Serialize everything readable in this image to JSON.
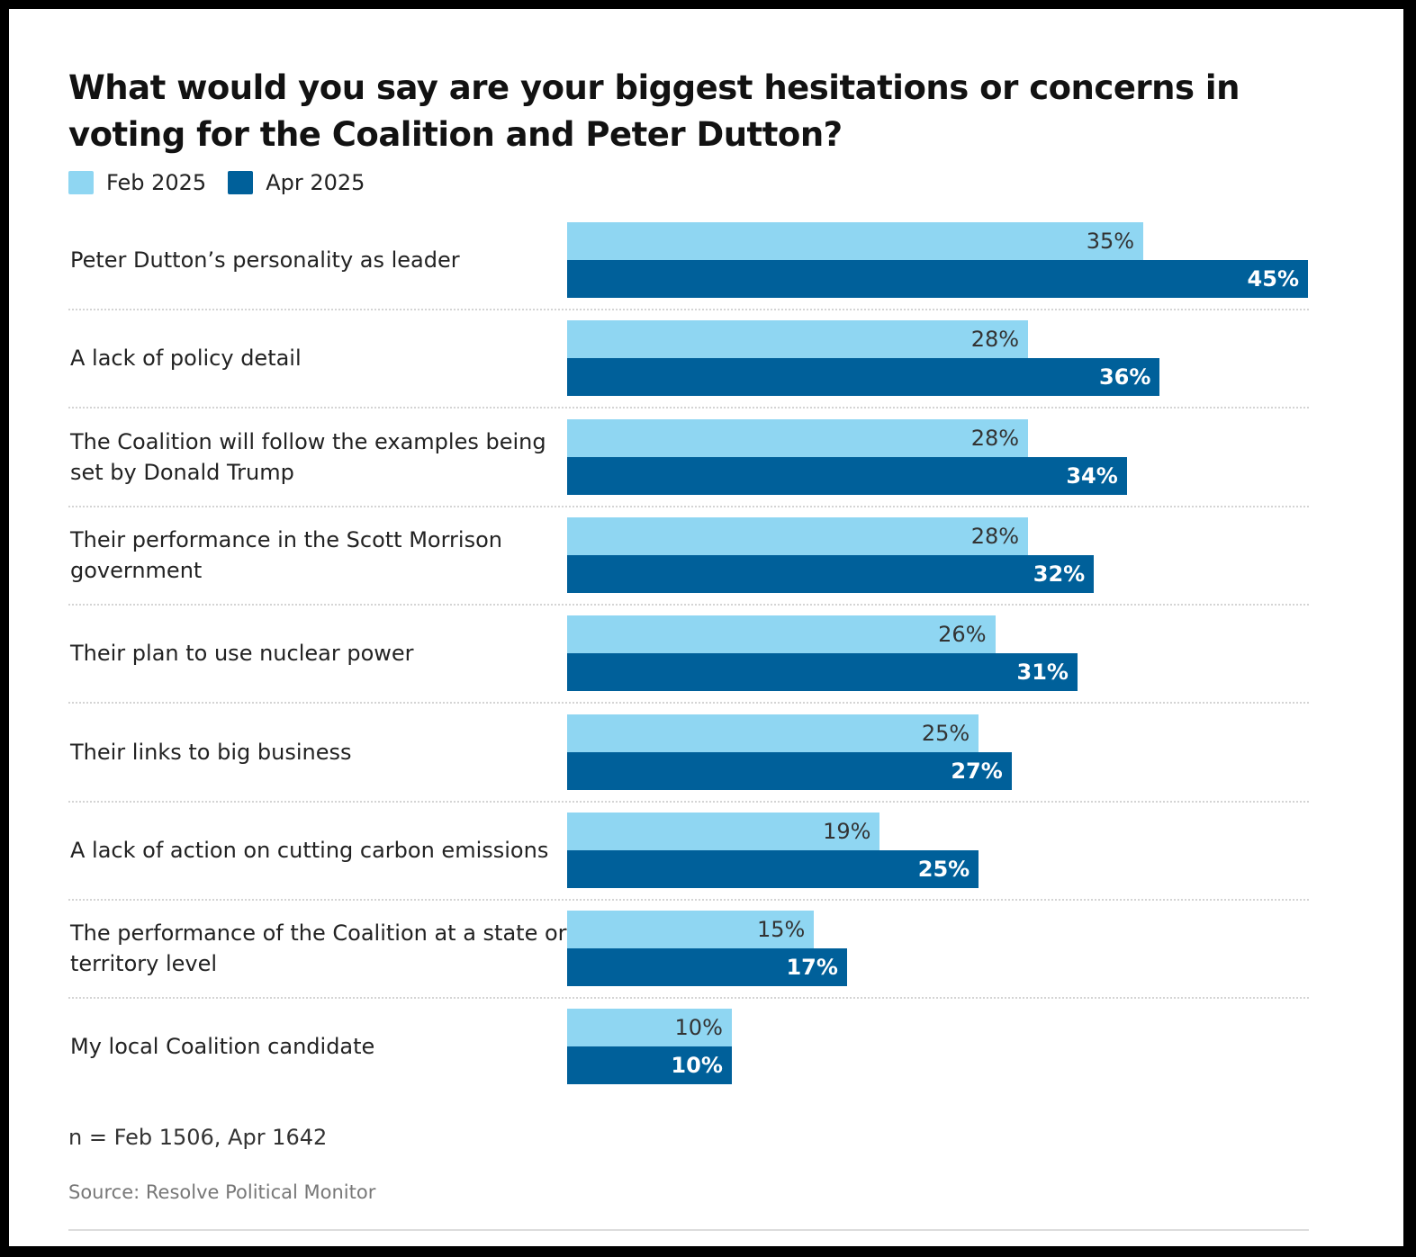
{
  "chart_data": {
    "type": "bar",
    "orientation": "horizontal",
    "title": "What would you say are your biggest hesitations or concerns in voting for the Coalition and Peter Dutton?",
    "categories": [
      "Peter Dutton’s personality as leader",
      "A lack of policy detail",
      "The Coalition will follow the examples being set by Donald Trump",
      "Their performance in the Scott Morrison government",
      "Their plan to use nuclear power",
      "Their links to big business",
      "A lack of action on cutting carbon emissions",
      "The performance of the Coalition at a state or territory level",
      "My local Coalition candidate"
    ],
    "series": [
      {
        "name": "Feb 2025",
        "color": "#8fd6f2",
        "values": [
          35,
          28,
          28,
          28,
          26,
          25,
          19,
          15,
          10
        ]
      },
      {
        "name": "Apr 2025",
        "color": "#00609a",
        "values": [
          45,
          36,
          34,
          32,
          31,
          27,
          25,
          17,
          10
        ]
      }
    ],
    "value_suffix": "%",
    "xlim": [
      0,
      45
    ],
    "legend_position": "top-left",
    "grid": false
  },
  "footer": {
    "note": "n = Feb 1506, Apr 1642",
    "source": "Source: Resolve Political Monitor"
  }
}
